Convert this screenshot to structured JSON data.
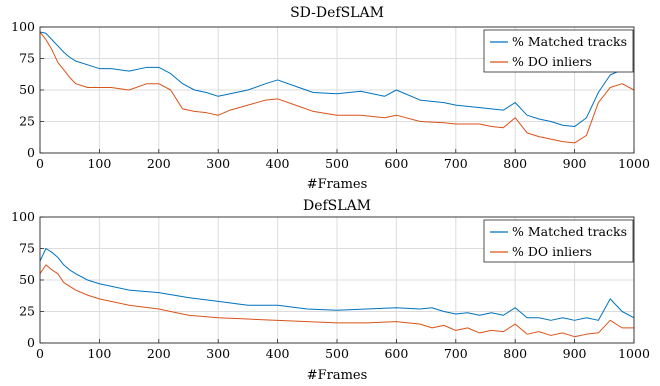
{
  "figure": {
    "colors": {
      "matched": "#0072BD",
      "inliers": "#D95319"
    }
  },
  "chart_data": [
    {
      "type": "line",
      "title": "SD-DefSLAM",
      "xlabel": "#Frames",
      "ylabel": "",
      "xlim": [
        0,
        1000
      ],
      "ylim": [
        0,
        100
      ],
      "xticks": [
        0,
        100,
        200,
        300,
        400,
        500,
        600,
        700,
        800,
        900,
        1000
      ],
      "yticks": [
        0,
        25,
        50,
        75,
        100
      ],
      "grid": true,
      "legend_position": "top-right",
      "series": [
        {
          "name": "% Matched tracks",
          "color": "#0072BD",
          "x": [
            0,
            10,
            20,
            30,
            40,
            50,
            60,
            80,
            100,
            120,
            150,
            180,
            200,
            220,
            240,
            260,
            280,
            300,
            320,
            350,
            380,
            400,
            430,
            460,
            500,
            540,
            580,
            600,
            640,
            680,
            700,
            740,
            760,
            780,
            800,
            820,
            840,
            860,
            880,
            900,
            920,
            940,
            960,
            980,
            1000
          ],
          "y": [
            96,
            95,
            90,
            85,
            80,
            76,
            73,
            70,
            67,
            67,
            65,
            68,
            68,
            63,
            55,
            50,
            48,
            45,
            47,
            50,
            55,
            58,
            53,
            48,
            47,
            49,
            45,
            50,
            42,
            40,
            38,
            36,
            35,
            34,
            40,
            30,
            27,
            25,
            22,
            21,
            28,
            48,
            62,
            66,
            70
          ]
        },
        {
          "name": "% DO inliers",
          "color": "#D95319",
          "x": [
            0,
            10,
            20,
            30,
            40,
            50,
            60,
            80,
            100,
            120,
            150,
            180,
            200,
            220,
            240,
            260,
            280,
            300,
            320,
            350,
            380,
            400,
            430,
            460,
            500,
            540,
            580,
            600,
            640,
            680,
            700,
            740,
            760,
            780,
            800,
            820,
            840,
            860,
            880,
            900,
            920,
            940,
            960,
            980,
            1000
          ],
          "y": [
            96,
            90,
            82,
            72,
            66,
            60,
            55,
            52,
            52,
            52,
            50,
            55,
            55,
            50,
            35,
            33,
            32,
            30,
            34,
            38,
            42,
            43,
            38,
            33,
            30,
            30,
            28,
            30,
            25,
            24,
            23,
            23,
            21,
            20,
            28,
            16,
            13,
            11,
            9,
            8,
            14,
            40,
            52,
            55,
            50
          ]
        }
      ]
    },
    {
      "type": "line",
      "title": "DefSLAM",
      "xlabel": "#Frames",
      "ylabel": "",
      "xlim": [
        0,
        1000
      ],
      "ylim": [
        0,
        100
      ],
      "xticks": [
        0,
        100,
        200,
        300,
        400,
        500,
        600,
        700,
        800,
        900,
        1000
      ],
      "yticks": [
        0,
        25,
        50,
        75,
        100
      ],
      "grid": true,
      "legend_position": "top-right",
      "series": [
        {
          "name": "% Matched tracks",
          "color": "#0072BD",
          "x": [
            0,
            10,
            20,
            30,
            40,
            50,
            60,
            80,
            100,
            150,
            200,
            250,
            300,
            350,
            400,
            450,
            500,
            550,
            600,
            640,
            660,
            680,
            700,
            720,
            740,
            760,
            780,
            800,
            820,
            840,
            860,
            880,
            900,
            920,
            940,
            960,
            980,
            1000
          ],
          "y": [
            65,
            75,
            72,
            68,
            62,
            58,
            55,
            50,
            47,
            42,
            40,
            36,
            33,
            30,
            30,
            27,
            26,
            27,
            28,
            27,
            28,
            25,
            23,
            24,
            22,
            24,
            22,
            28,
            20,
            20,
            18,
            20,
            18,
            20,
            18,
            35,
            25,
            20
          ]
        },
        {
          "name": "% DO inliers",
          "color": "#D95319",
          "x": [
            0,
            10,
            20,
            30,
            40,
            50,
            60,
            80,
            100,
            150,
            200,
            250,
            300,
            350,
            400,
            450,
            500,
            550,
            600,
            640,
            660,
            680,
            700,
            720,
            740,
            760,
            780,
            800,
            820,
            840,
            860,
            880,
            900,
            920,
            940,
            960,
            980,
            1000
          ],
          "y": [
            55,
            62,
            58,
            55,
            48,
            45,
            42,
            38,
            35,
            30,
            27,
            22,
            20,
            19,
            18,
            17,
            16,
            16,
            17,
            15,
            12,
            14,
            10,
            12,
            8,
            10,
            9,
            15,
            7,
            9,
            6,
            8,
            5,
            7,
            8,
            18,
            12,
            12
          ]
        }
      ]
    }
  ]
}
